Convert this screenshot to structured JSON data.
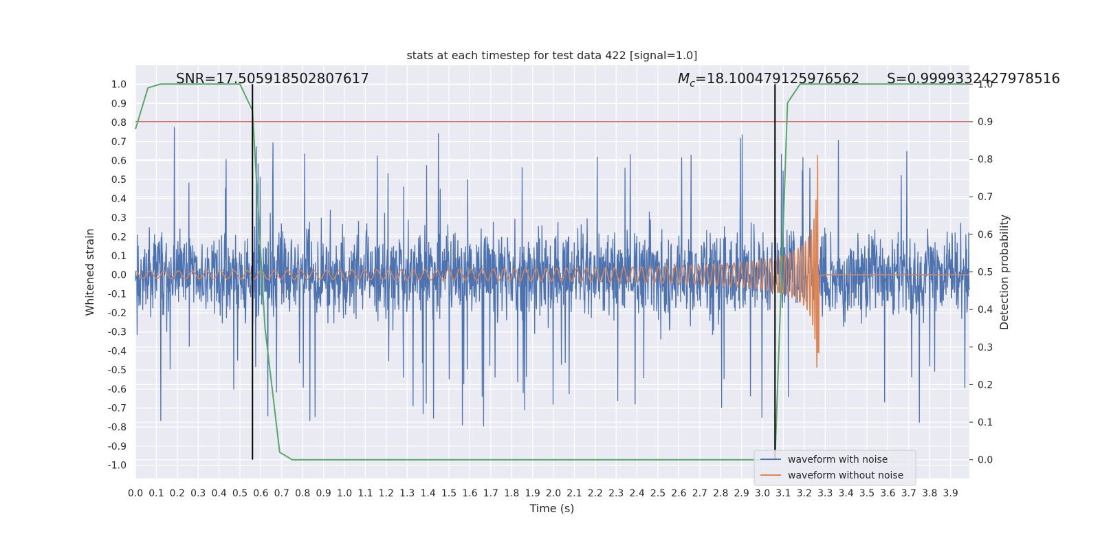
{
  "chart_data": {
    "type": "line",
    "title": "stats at each timestep for test data 422 [signal=1.0]",
    "xlabel": "Time (s)",
    "ylabel": "Whitened strain",
    "y2label": "Detection probability",
    "xlim": [
      0.0,
      3.99
    ],
    "ylim": [
      -1.07,
      1.1
    ],
    "y2lim": [
      -0.05,
      1.05
    ],
    "xticks": [
      "0.0",
      "0.1",
      "0.2",
      "0.3",
      "0.4",
      "0.5",
      "0.6",
      "0.7",
      "0.8",
      "0.9",
      "1.0",
      "1.1",
      "1.2",
      "1.3",
      "1.4",
      "1.5",
      "1.6",
      "1.7",
      "1.8",
      "1.9",
      "2.0",
      "2.1",
      "2.2",
      "2.3",
      "2.4",
      "2.5",
      "2.6",
      "2.7",
      "2.8",
      "2.9",
      "3.0",
      "3.1",
      "3.2",
      "3.3",
      "3.4",
      "3.5",
      "3.6",
      "3.7",
      "3.8",
      "3.9"
    ],
    "yticks": [
      "1.0",
      "0.9",
      "0.8",
      "0.7",
      "0.6",
      "0.5",
      "0.4",
      "0.3",
      "0.2",
      "0.1",
      "0.0",
      "-0.1",
      "-0.2",
      "-0.3",
      "-0.4",
      "-0.5",
      "-0.6",
      "-0.7",
      "-0.8",
      "-0.9",
      "-1.0"
    ],
    "y2ticks": [
      "1.0",
      "0.9",
      "0.8",
      "0.7",
      "0.6",
      "0.5",
      "0.4",
      "0.3",
      "0.2",
      "0.1",
      "0.0"
    ],
    "grid": true,
    "legend_position": "lower-right",
    "annotations": {
      "snr": "SNR=17.505918502807617",
      "mc_symbol": "M",
      "mc_sub": "c",
      "mc_value": "=18.100479125976562",
      "s": "S=0.9999332427978516"
    },
    "series": [
      {
        "name": "waveform with noise",
        "color": "#4c72b0",
        "axis": "left",
        "description_shape": "noise",
        "amplitude_typical": 0.3,
        "amplitude_peak": 0.97
      },
      {
        "name": "waveform without noise",
        "color": "#dd8452",
        "axis": "left",
        "description_shape": "chirp",
        "t_merger": 3.27,
        "amplitude_start": 0.02,
        "amplitude_peak": 0.7
      },
      {
        "color": "#55a868",
        "axis": "right",
        "x": [
          0.0,
          0.06,
          0.12,
          0.5,
          0.56,
          0.62,
          0.69,
          0.75,
          3.06,
          3.12,
          3.18,
          3.22,
          3.99
        ],
        "y": [
          0.88,
          0.99,
          1.0,
          1.0,
          0.93,
          0.35,
          0.02,
          0.0,
          0.0,
          0.95,
          1.0,
          1.0,
          1.0
        ]
      }
    ],
    "hlines": [
      {
        "y2": 0.9,
        "color": "#c44e52"
      }
    ],
    "vlines": [
      {
        "x": 0.56,
        "color": "#000000"
      },
      {
        "x": 3.06,
        "color": "#000000"
      }
    ],
    "colors": {
      "background": "#eaeaf2",
      "grid": "#ffffff",
      "noise": "#4c72b0",
      "clean": "#dd8452",
      "probability": "#55a868",
      "threshold": "#c44e52"
    }
  }
}
